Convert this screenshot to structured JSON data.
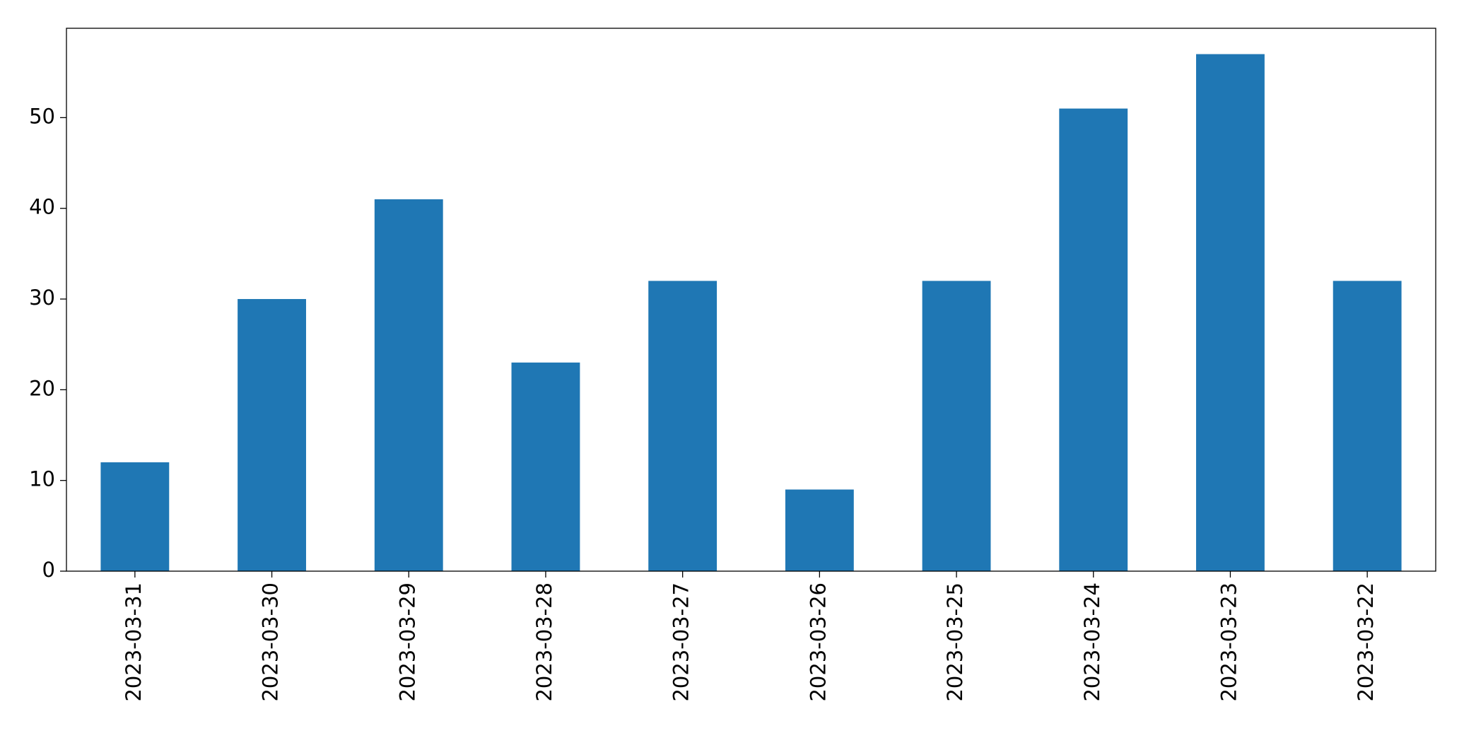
{
  "chart_data": {
    "type": "bar",
    "categories": [
      "2023-03-31",
      "2023-03-30",
      "2023-03-29",
      "2023-03-28",
      "2023-03-27",
      "2023-03-26",
      "2023-03-25",
      "2023-03-24",
      "2023-03-23",
      "2023-03-22"
    ],
    "values": [
      12,
      30,
      41,
      23,
      32,
      9,
      32,
      51,
      57,
      32
    ],
    "color": "#1f77b4",
    "ylim": [
      0,
      59.85
    ],
    "yticks": [
      0,
      10,
      20,
      30,
      40,
      50
    ],
    "grid": false
  }
}
